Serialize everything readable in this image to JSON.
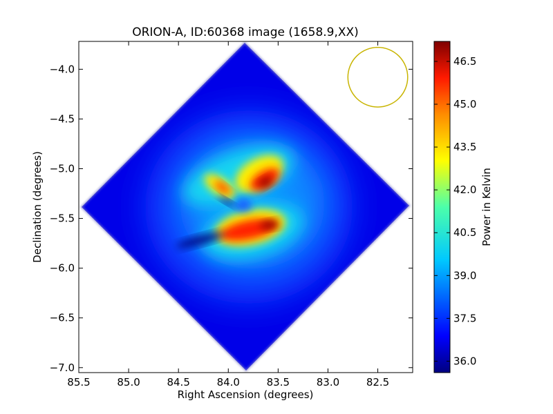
{
  "chart_data": {
    "type": "heatmap",
    "title": "ORION-A, ID:60368 image (1658.9,XX)",
    "xlabel": "Right Ascension (degrees)",
    "ylabel": "Declination (degrees)",
    "xlim": [
      85.5,
      82.15
    ],
    "ylim": [
      -7.05,
      -3.72
    ],
    "x_ticks": [
      "85.5",
      "85.0",
      "84.5",
      "84.0",
      "83.5",
      "83.0",
      "82.5"
    ],
    "x_tick_values": [
      85.5,
      85.0,
      84.5,
      84.0,
      83.5,
      83.0,
      82.5
    ],
    "y_ticks": [
      "−4.0",
      "−4.5",
      "−5.0",
      "−5.5",
      "−6.0",
      "−6.5",
      "−7.0"
    ],
    "y_tick_values": [
      -4.0,
      -4.5,
      -5.0,
      -5.5,
      -6.0,
      -6.5,
      -7.0
    ],
    "grid": false,
    "colormap": "jet",
    "colorbar": {
      "label": "Power in Kelvin",
      "range": [
        35.6,
        47.2
      ],
      "ticks": [
        "36.0",
        "37.5",
        "39.0",
        "40.5",
        "42.0",
        "43.5",
        "45.0",
        "46.5"
      ],
      "tick_values": [
        36.0,
        37.5,
        39.0,
        40.5,
        42.0,
        43.5,
        45.0,
        46.5
      ]
    },
    "map": {
      "shape": "diamond",
      "center_ra": 83.85,
      "center_dec": -5.38,
      "half_extent_deg": 1.66,
      "background_level": 36.9,
      "features": [
        {
          "name": "upper-right lobe",
          "ra": 83.62,
          "dec": -5.14,
          "peak": 47.0
        },
        {
          "name": "upper-left lobe",
          "ra": 84.15,
          "dec": -5.2,
          "peak": 45.5
        },
        {
          "name": "lower lobe",
          "ra": 83.75,
          "dec": -5.63,
          "peak": 46.5
        },
        {
          "name": "central dip",
          "ra": 83.88,
          "dec": -5.38,
          "peak": 38.0
        },
        {
          "name": "dark streak",
          "ra": 84.25,
          "dec": -5.72,
          "peak": 35.8
        }
      ]
    },
    "beam": {
      "ra": 82.5,
      "dec": -4.08,
      "radius_deg": 0.3,
      "color": "#c8b400"
    }
  }
}
